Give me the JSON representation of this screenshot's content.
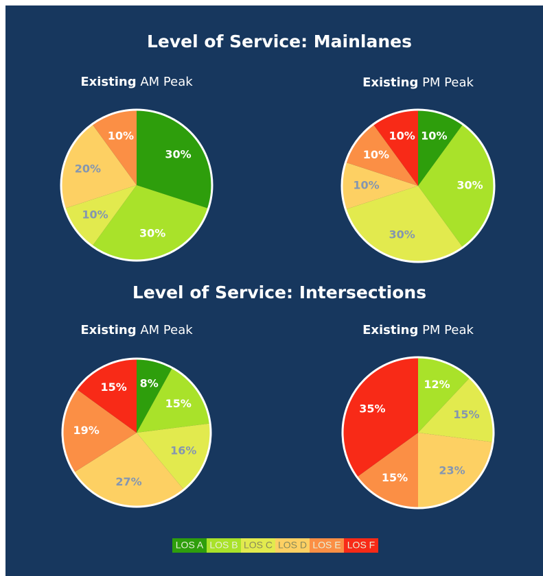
{
  "sections": [
    "Level of Service: Mainlanes",
    "Level of Service: Intersections"
  ],
  "legend": {
    "labels": [
      "LOS A",
      "LOS B",
      "LOS C",
      "LOS D",
      "LOS E",
      "LOS F"
    ],
    "colors": [
      "#2e9e0c",
      "#a9e22a",
      "#e2ea4e",
      "#fdd063",
      "#fb8f45",
      "#f82a17"
    ],
    "label_colors": [
      "#ffffff",
      "#ffffff",
      "#8496b0",
      "#8496b0",
      "#ffffff",
      "#ffffff"
    ]
  },
  "chart_data": [
    {
      "type": "pie",
      "title_prefix": "Existing",
      "title": "AM Peak",
      "values": [
        30,
        30,
        10,
        20,
        10,
        0
      ],
      "value_labels": [
        "30%",
        "30%",
        "10%",
        "20%",
        "10%",
        null
      ]
    },
    {
      "type": "pie",
      "title_prefix": "Existing",
      "title": "PM Peak",
      "values": [
        10,
        30,
        30,
        10,
        10,
        10
      ],
      "value_labels": [
        "10%",
        "30%",
        "30%",
        "10%",
        "10%",
        "10%"
      ]
    },
    {
      "type": "pie",
      "title_prefix": "Existing",
      "title": "AM Peak",
      "values": [
        8,
        15,
        16,
        27,
        19,
        15
      ],
      "value_labels": [
        "8%",
        "15%",
        "16%",
        "27%",
        "19%",
        "15%"
      ]
    },
    {
      "type": "pie",
      "title_prefix": "Existing",
      "title": "PM Peak",
      "values": [
        0,
        12,
        15,
        23,
        15,
        35
      ],
      "value_labels": [
        null,
        "12%",
        "15%",
        "23%",
        "15%",
        "35%"
      ]
    }
  ]
}
